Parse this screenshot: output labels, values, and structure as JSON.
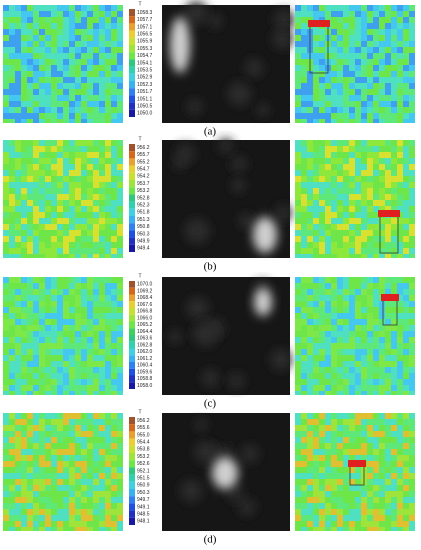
{
  "rows": [
    {
      "label": "(a)",
      "colorbar": {
        "title": "T",
        "labels": [
          "1058.3",
          "1057.7",
          "1057.1",
          "1056.5",
          "1055.9",
          "1055.3",
          "1054.7",
          "1054.1",
          "1053.5",
          "1052.9",
          "1052.3",
          "1051.7",
          "1051.1",
          "1050.5",
          "1050.0"
        ]
      }
    },
    {
      "label": "(b)",
      "colorbar": {
        "title": "T",
        "labels": [
          "956.2",
          "955.7",
          "955.2",
          "954.7",
          "954.2",
          "953.7",
          "953.2",
          "952.8",
          "952.3",
          "951.8",
          "951.3",
          "950.8",
          "950.3",
          "949.9",
          "949.4"
        ]
      }
    },
    {
      "label": "(c)",
      "colorbar": {
        "title": "T",
        "labels": [
          "1070.0",
          "1069.2",
          "1068.4",
          "1067.6",
          "1066.8",
          "1066.0",
          "1065.2",
          "1064.4",
          "1063.6",
          "1062.8",
          "1062.0",
          "1061.2",
          "1060.4",
          "1059.6",
          "1058.8",
          "1058.0"
        ]
      }
    },
    {
      "label": "(d)",
      "colorbar": {
        "title": "T",
        "labels": [
          "956.2",
          "955.6",
          "955.0",
          "954.4",
          "953.8",
          "953.2",
          "952.6",
          "952.1",
          "951.5",
          "950.9",
          "950.3",
          "949.7",
          "949.1",
          "948.5",
          "948.1"
        ]
      }
    }
  ]
}
